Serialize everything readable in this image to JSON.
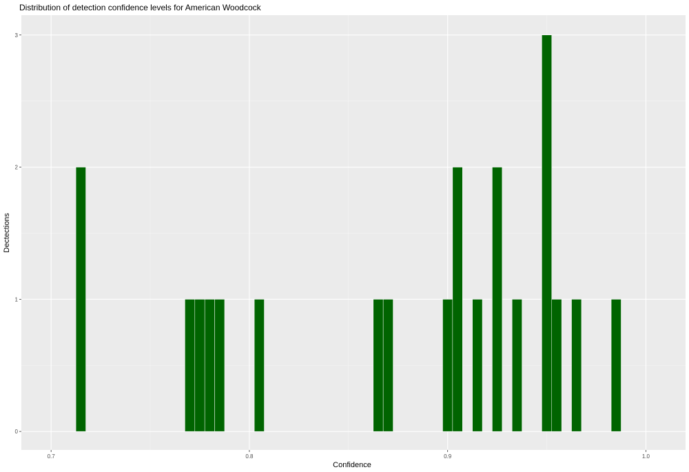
{
  "chart_data": {
    "type": "bar",
    "title": "Distribution of detection confidence levels for American Woodcock",
    "xlabel": "Confidence",
    "ylabel": "Dectections",
    "xlim": [
      0.685,
      1.02
    ],
    "ylim": [
      -0.14,
      3.15
    ],
    "x_ticks": [
      0.7,
      0.8,
      0.9,
      1.0
    ],
    "x_tick_labels": [
      "0.7",
      "0.8",
      "0.9",
      "1.0"
    ],
    "y_ticks": [
      0,
      1,
      2,
      3
    ],
    "y_tick_labels": [
      "0",
      "1",
      "2",
      "3"
    ],
    "bin_width": 0.005,
    "bins": [
      {
        "x": 0.715,
        "count": 2
      },
      {
        "x": 0.77,
        "count": 1
      },
      {
        "x": 0.775,
        "count": 1
      },
      {
        "x": 0.78,
        "count": 1
      },
      {
        "x": 0.785,
        "count": 1
      },
      {
        "x": 0.805,
        "count": 1
      },
      {
        "x": 0.865,
        "count": 1
      },
      {
        "x": 0.87,
        "count": 1
      },
      {
        "x": 0.9,
        "count": 1
      },
      {
        "x": 0.905,
        "count": 2
      },
      {
        "x": 0.915,
        "count": 1
      },
      {
        "x": 0.925,
        "count": 2
      },
      {
        "x": 0.935,
        "count": 1
      },
      {
        "x": 0.95,
        "count": 3
      },
      {
        "x": 0.955,
        "count": 1
      },
      {
        "x": 0.965,
        "count": 1
      },
      {
        "x": 0.985,
        "count": 1
      }
    ],
    "grid": true,
    "colors": {
      "bar_fill": "#006400",
      "bar_outline": "#ffffff",
      "panel_background": "#ebebeb",
      "grid_major": "#ffffff",
      "grid_minor": "#f5f5f5",
      "tick_text": "#4d4d4d"
    }
  }
}
